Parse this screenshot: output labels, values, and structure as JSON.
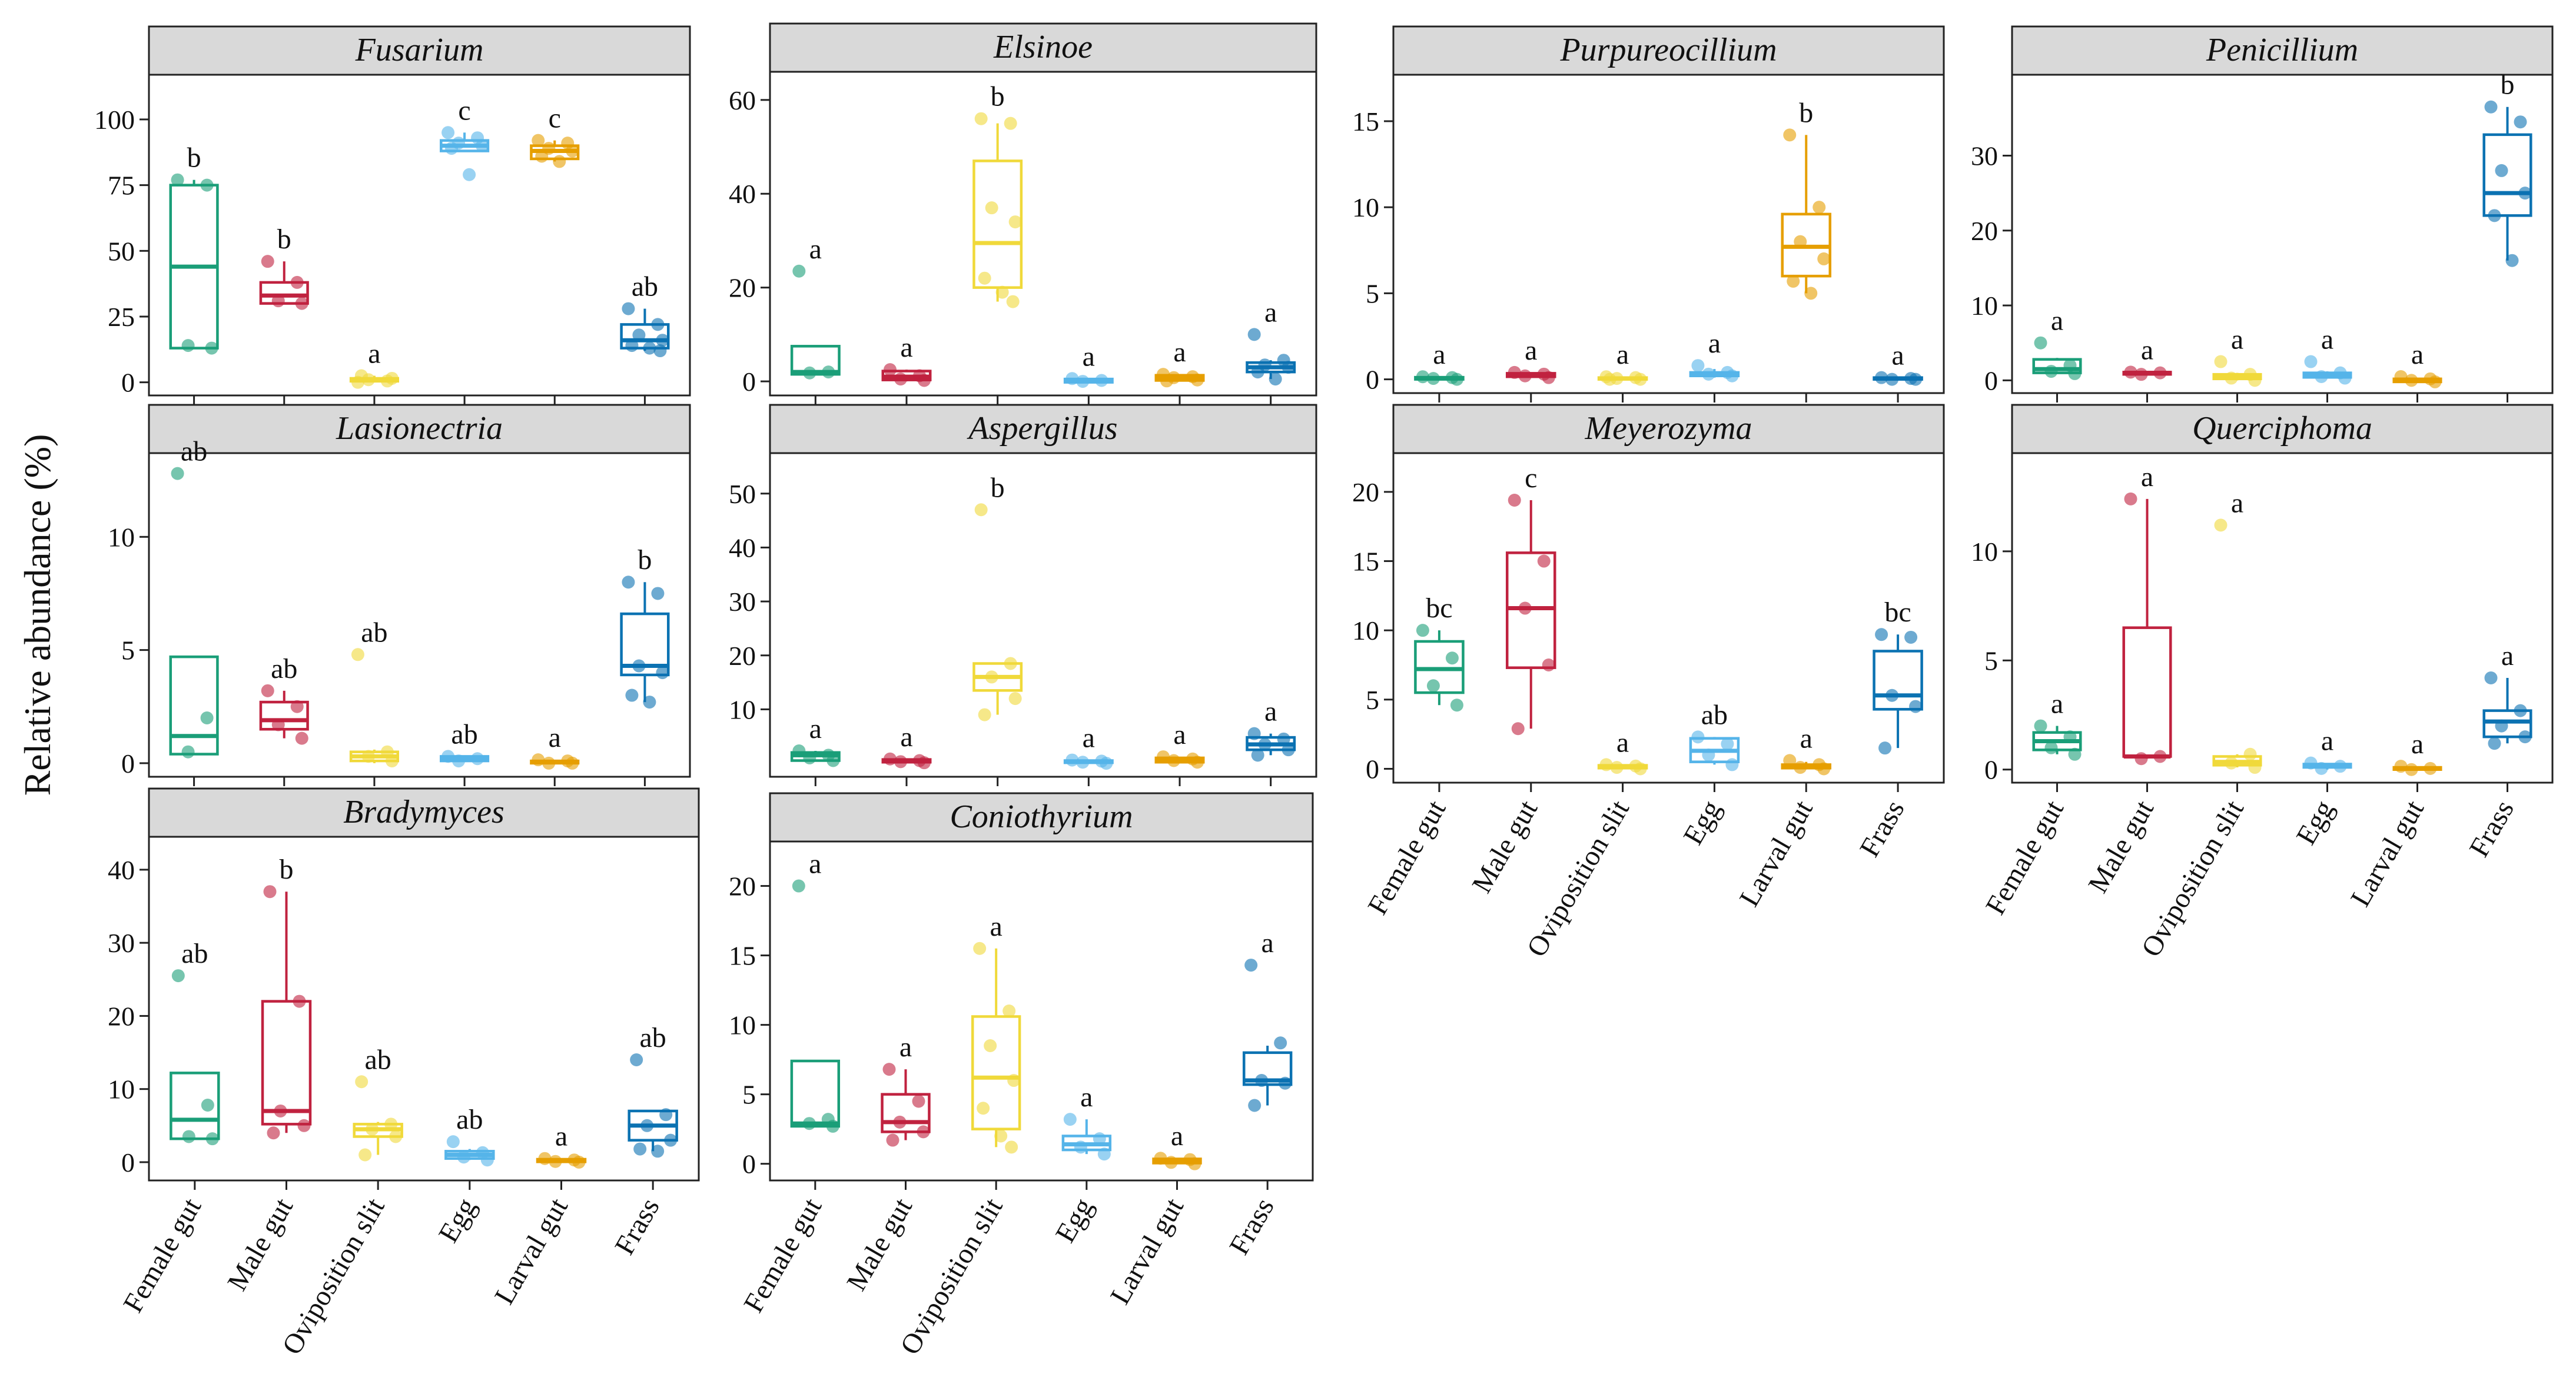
{
  "ylabel": "Relative abundance (%)",
  "categories": [
    "Female gut",
    "Male gut",
    "Oviposition slit",
    "Egg",
    "Larval gut",
    "Frass"
  ],
  "colors": [
    "#1a9e78",
    "#c0223f",
    "#f0d93a",
    "#55b4e9",
    "#e69f00",
    "#0b72b2"
  ],
  "chart_data": [
    {
      "type": "box",
      "title": "Fusarium",
      "ylim": [
        -5,
        117
      ],
      "yticks": [
        0,
        25,
        50,
        75,
        100
      ],
      "boxes": [
        {
          "q1": 13,
          "median": 44,
          "q3": 75,
          "low": 13,
          "high": 77,
          "points": [
            77,
            75,
            14,
            13
          ]
        },
        {
          "q1": 30,
          "median": 33,
          "q3": 38,
          "low": 30,
          "high": 46,
          "points": [
            46,
            38,
            31,
            30
          ]
        },
        {
          "q1": 0.4,
          "median": 0.8,
          "q3": 1.5,
          "low": 0,
          "high": 2.5,
          "points": [
            0,
            0.5,
            1,
            1.5,
            2.5
          ]
        },
        {
          "q1": 88,
          "median": 90,
          "q3": 92,
          "low": 88,
          "high": 95,
          "points": [
            95,
            93,
            91,
            90,
            89,
            79
          ]
        },
        {
          "q1": 85,
          "median": 88,
          "q3": 90,
          "low": 84,
          "high": 92,
          "points": [
            92,
            91,
            89,
            88,
            86,
            84
          ]
        },
        {
          "q1": 13,
          "median": 16,
          "q3": 22,
          "low": 12,
          "high": 28,
          "points": [
            28,
            22,
            18,
            16,
            14,
            13,
            12
          ]
        }
      ],
      "letters": [
        "b",
        "b",
        "a",
        "c",
        "c",
        "ab"
      ]
    },
    {
      "type": "box",
      "title": "Elsinoe",
      "ylim": [
        -3,
        66
      ],
      "yticks": [
        0,
        20,
        40,
        60
      ],
      "boxes": [
        {
          "q1": 1.5,
          "median": 2,
          "q3": 7.5,
          "low": 1.5,
          "high": 7.5,
          "points": [
            23.5,
            2,
            1.8
          ]
        },
        {
          "q1": 0.3,
          "median": 1,
          "q3": 2.2,
          "low": 0,
          "high": 2.5,
          "points": [
            2.5,
            1.2,
            0.5,
            0.2
          ]
        },
        {
          "q1": 20,
          "median": 29.5,
          "q3": 47,
          "low": 17,
          "high": 55,
          "points": [
            56,
            55,
            37,
            34,
            22,
            19,
            17
          ]
        },
        {
          "q1": -0.2,
          "median": 0.2,
          "q3": 0.5,
          "low": -0.2,
          "high": 0.6,
          "points": [
            0.6,
            0.2,
            0
          ]
        },
        {
          "q1": 0.2,
          "median": 0.8,
          "q3": 1.3,
          "low": 0,
          "high": 1.5,
          "points": [
            1.5,
            1,
            0.8,
            0.3,
            0.1
          ]
        },
        {
          "q1": 2,
          "median": 3,
          "q3": 4,
          "low": 0.5,
          "high": 4.5,
          "points": [
            10,
            4.5,
            3.5,
            3,
            2,
            0.5
          ]
        }
      ],
      "letters": [
        "a",
        "a",
        "b",
        "a",
        "a",
        "a"
      ]
    },
    {
      "type": "box",
      "title": "Purpureocillium",
      "ylim": [
        -0.8,
        17.7
      ],
      "yticks": [
        0,
        5,
        10,
        15
      ],
      "boxes": [
        {
          "q1": 0,
          "median": 0.05,
          "q3": 0.12,
          "low": 0,
          "high": 0.15,
          "points": [
            0.15,
            0.1,
            0.05,
            0
          ]
        },
        {
          "q1": 0.15,
          "median": 0.25,
          "q3": 0.35,
          "low": 0.1,
          "high": 0.4,
          "points": [
            0.4,
            0.3,
            0.2,
            0.1
          ]
        },
        {
          "q1": 0,
          "median": 0.05,
          "q3": 0.1,
          "low": 0,
          "high": 0.15,
          "points": [
            0.15,
            0.1,
            0.05,
            0,
            0
          ]
        },
        {
          "q1": 0.2,
          "median": 0.3,
          "q3": 0.4,
          "low": 0.1,
          "high": 0.6,
          "points": [
            0.8,
            0.4,
            0.3,
            0.2
          ]
        },
        {
          "q1": 6,
          "median": 7.7,
          "q3": 9.6,
          "low": 5,
          "high": 14.2,
          "points": [
            14.2,
            10,
            8,
            7,
            5.7,
            5
          ]
        },
        {
          "q1": 0,
          "median": 0.05,
          "q3": 0.1,
          "low": 0,
          "high": 0.1,
          "points": [
            0.1,
            0.05,
            0,
            0
          ]
        }
      ],
      "letters": [
        "a",
        "a",
        "a",
        "a",
        "b",
        "a"
      ]
    },
    {
      "type": "box",
      "title": "Penicillium",
      "ylim": [
        -1.7,
        40.8
      ],
      "yticks": [
        0,
        10,
        20,
        30
      ],
      "boxes": [
        {
          "q1": 1,
          "median": 1.5,
          "q3": 2.8,
          "low": 0.9,
          "high": 3,
          "points": [
            5,
            2,
            1.2,
            0.9
          ]
        },
        {
          "q1": 0.8,
          "median": 1,
          "q3": 1.1,
          "low": 0.8,
          "high": 1.1,
          "points": [
            1.1,
            1,
            0.8
          ]
        },
        {
          "q1": 0.2,
          "median": 0.5,
          "q3": 0.8,
          "low": 0,
          "high": 1,
          "points": [
            2.5,
            0.8,
            0.3,
            0
          ]
        },
        {
          "q1": 0.4,
          "median": 0.7,
          "q3": 1,
          "low": 0.3,
          "high": 1.2,
          "points": [
            2.5,
            1,
            0.5,
            0.3
          ]
        },
        {
          "q1": -0.2,
          "median": 0,
          "q3": 0.2,
          "low": -0.2,
          "high": 0.3,
          "points": [
            0.5,
            0.2,
            0,
            -0.2
          ]
        },
        {
          "q1": 22,
          "median": 25,
          "q3": 32.8,
          "low": 16,
          "high": 36.5,
          "points": [
            36.5,
            34.5,
            28,
            25,
            22,
            16
          ]
        }
      ],
      "letters": [
        "a",
        "a",
        "a",
        "a",
        "a",
        "b"
      ]
    },
    {
      "type": "box",
      "title": "Lasionectria",
      "ylim": [
        -0.6,
        13.7
      ],
      "yticks": [
        0,
        5,
        10
      ],
      "boxes": [
        {
          "q1": 0.4,
          "median": 1.2,
          "q3": 4.7,
          "low": 0.4,
          "high": 4.7,
          "points": [
            12.8,
            2,
            0.5
          ]
        },
        {
          "q1": 1.5,
          "median": 1.9,
          "q3": 2.7,
          "low": 1.1,
          "high": 3.2,
          "points": [
            3.2,
            2.5,
            1.7,
            1.1
          ]
        },
        {
          "q1": 0.1,
          "median": 0.3,
          "q3": 0.5,
          "low": 0,
          "high": 0.6,
          "points": [
            4.8,
            0.5,
            0.3,
            0.1
          ]
        },
        {
          "q1": 0.1,
          "median": 0.2,
          "q3": 0.3,
          "low": 0.1,
          "high": 0.3,
          "points": [
            0.3,
            0.2,
            0.1
          ]
        },
        {
          "q1": 0,
          "median": 0.05,
          "q3": 0.1,
          "low": 0,
          "high": 0.15,
          "points": [
            0.15,
            0.1,
            0,
            0
          ]
        },
        {
          "q1": 3.9,
          "median": 4.3,
          "q3": 6.6,
          "low": 2.7,
          "high": 8,
          "points": [
            8,
            7.5,
            4.3,
            4,
            3,
            2.7
          ]
        }
      ],
      "letters": [
        "ab",
        "ab",
        "ab",
        "ab",
        "a",
        "b"
      ]
    },
    {
      "type": "box",
      "title": "Aspergillus",
      "ylim": [
        -2.5,
        57.5
      ],
      "yticks": [
        10,
        20,
        30,
        40,
        50
      ],
      "boxes": [
        {
          "q1": 0.5,
          "median": 1.5,
          "q3": 2,
          "low": 0.3,
          "high": 2.3,
          "points": [
            2.3,
            1.5,
            1,
            0.5
          ]
        },
        {
          "q1": 0.2,
          "median": 0.5,
          "q3": 0.7,
          "low": 0,
          "high": 0.8,
          "points": [
            0.8,
            0.5,
            0.3,
            0.1
          ]
        },
        {
          "q1": 13.5,
          "median": 16,
          "q3": 18.5,
          "low": 9,
          "high": 18.5,
          "points": [
            47,
            18.5,
            16,
            12,
            9
          ]
        },
        {
          "q1": 0.1,
          "median": 0.3,
          "q3": 0.5,
          "low": 0,
          "high": 0.6,
          "points": [
            0.6,
            0.4,
            0.2,
            0
          ]
        },
        {
          "q1": 0.2,
          "median": 0.5,
          "q3": 1,
          "low": 0,
          "high": 1.2,
          "points": [
            1.2,
            0.8,
            0.5,
            0.2
          ]
        },
        {
          "q1": 2.5,
          "median": 3.5,
          "q3": 4.8,
          "low": 1.5,
          "high": 5.5,
          "points": [
            5.5,
            4.5,
            3.5,
            2.5,
            1.5
          ]
        }
      ],
      "letters": [
        "a",
        "a",
        "b",
        "a",
        "a",
        "a"
      ]
    },
    {
      "type": "box",
      "title": "Meyerozyma",
      "ylim": [
        -1,
        22.8
      ],
      "yticks": [
        0,
        5,
        10,
        15,
        20
      ],
      "boxes": [
        {
          "q1": 5.5,
          "median": 7.2,
          "q3": 9.2,
          "low": 4.6,
          "high": 10,
          "points": [
            10,
            8,
            6,
            4.6
          ]
        },
        {
          "q1": 7.3,
          "median": 11.6,
          "q3": 15.6,
          "low": 2.9,
          "high": 19.4,
          "points": [
            19.4,
            15,
            11.6,
            7.5,
            2.9
          ]
        },
        {
          "q1": 0.05,
          "median": 0.15,
          "q3": 0.25,
          "low": 0,
          "high": 0.3,
          "points": [
            0.3,
            0.2,
            0.1,
            0
          ]
        },
        {
          "q1": 0.5,
          "median": 1.3,
          "q3": 2.2,
          "low": 0.3,
          "high": 2.3,
          "points": [
            2.3,
            1.8,
            1,
            0.3
          ]
        },
        {
          "q1": 0.05,
          "median": 0.15,
          "q3": 0.3,
          "low": 0,
          "high": 0.5,
          "points": [
            0.6,
            0.3,
            0.1,
            0
          ]
        },
        {
          "q1": 4.3,
          "median": 5.3,
          "q3": 8.5,
          "low": 1.5,
          "high": 9.7,
          "points": [
            9.7,
            9.5,
            5.3,
            4.5,
            1.5
          ]
        }
      ],
      "letters": [
        "bc",
        "c",
        "a",
        "ab",
        "a",
        "bc"
      ]
    },
    {
      "type": "box",
      "title": "Querciphoma",
      "ylim": [
        -0.6,
        14.5
      ],
      "yticks": [
        0,
        5,
        10
      ],
      "boxes": [
        {
          "q1": 0.9,
          "median": 1.3,
          "q3": 1.7,
          "low": 0.7,
          "high": 2,
          "points": [
            2,
            1.5,
            1,
            0.7
          ]
        },
        {
          "q1": 0.6,
          "median": 0.6,
          "q3": 6.5,
          "low": 0.5,
          "high": 12.4,
          "points": [
            12.4,
            0.6,
            0.5
          ]
        },
        {
          "q1": 0.2,
          "median": 0.35,
          "q3": 0.6,
          "low": 0.1,
          "high": 0.7,
          "points": [
            11.2,
            0.7,
            0.3,
            0.1
          ]
        },
        {
          "q1": 0.1,
          "median": 0.15,
          "q3": 0.25,
          "low": 0,
          "high": 0.3,
          "points": [
            0.3,
            0.15,
            0.05
          ]
        },
        {
          "q1": 0,
          "median": 0.05,
          "q3": 0.1,
          "low": 0,
          "high": 0.15,
          "points": [
            0.15,
            0.05,
            0
          ]
        },
        {
          "q1": 1.5,
          "median": 2.2,
          "q3": 2.7,
          "low": 1.2,
          "high": 4.2,
          "points": [
            4.2,
            2.7,
            2,
            1.5,
            1.2
          ]
        }
      ],
      "letters": [
        "a",
        "a",
        "a",
        "a",
        "a",
        "a"
      ]
    },
    {
      "type": "box",
      "title": "Bradymyces",
      "ylim": [
        -2.5,
        44.5
      ],
      "yticks": [
        0,
        10,
        20,
        30,
        40
      ],
      "boxes": [
        {
          "q1": 3.2,
          "median": 5.8,
          "q3": 12.2,
          "low": 3.2,
          "high": 12.2,
          "points": [
            25.5,
            7.8,
            3.5,
            3.2
          ]
        },
        {
          "q1": 5.2,
          "median": 7,
          "q3": 22,
          "low": 4,
          "high": 37,
          "points": [
            37,
            22,
            7,
            5,
            4
          ]
        },
        {
          "q1": 3.5,
          "median": 4.5,
          "q3": 5.2,
          "low": 1,
          "high": 5.5,
          "points": [
            11,
            5.2,
            4.5,
            3.5,
            1
          ]
        },
        {
          "q1": 0.5,
          "median": 1,
          "q3": 1.5,
          "low": 0.3,
          "high": 1.8,
          "points": [
            2.8,
            1.3,
            0.7,
            0.3
          ]
        },
        {
          "q1": 0.05,
          "median": 0.2,
          "q3": 0.4,
          "low": 0,
          "high": 0.5,
          "points": [
            0.5,
            0.3,
            0.1,
            0
          ]
        },
        {
          "q1": 3,
          "median": 5,
          "q3": 7,
          "low": 1.5,
          "high": 7,
          "points": [
            14,
            6.5,
            5,
            3,
            1.8,
            1.5
          ]
        }
      ],
      "letters": [
        "ab",
        "b",
        "ab",
        "ab",
        "a",
        "ab"
      ]
    },
    {
      "type": "box",
      "title": "Coniothyrium",
      "ylim": [
        -1.2,
        23.2
      ],
      "yticks": [
        0,
        5,
        10,
        15,
        20
      ],
      "boxes": [
        {
          "q1": 2.7,
          "median": 2.9,
          "q3": 7.4,
          "low": 2.7,
          "high": 7.4,
          "points": [
            20,
            3.2,
            2.9,
            2.7
          ]
        },
        {
          "q1": 2.3,
          "median": 3,
          "q3": 5,
          "low": 1.7,
          "high": 6.8,
          "points": [
            6.8,
            4.5,
            3,
            2.3,
            1.7
          ]
        },
        {
          "q1": 2.5,
          "median": 6.2,
          "q3": 10.6,
          "low": 1.2,
          "high": 15.5,
          "points": [
            15.5,
            11,
            8.5,
            6,
            4,
            2,
            1.2
          ]
        },
        {
          "q1": 1,
          "median": 1.4,
          "q3": 2,
          "low": 0.7,
          "high": 3.2,
          "points": [
            3.2,
            1.8,
            1.2,
            0.7
          ]
        },
        {
          "q1": 0.05,
          "median": 0.2,
          "q3": 0.35,
          "low": 0,
          "high": 0.4,
          "points": [
            0.4,
            0.3,
            0.1,
            0
          ]
        },
        {
          "q1": 5.7,
          "median": 6,
          "q3": 8,
          "low": 4.2,
          "high": 8.5,
          "points": [
            14.3,
            8.7,
            6,
            5.8,
            4.2
          ]
        }
      ],
      "letters": [
        "a",
        "a",
        "a",
        "a",
        "a",
        "a"
      ]
    }
  ]
}
